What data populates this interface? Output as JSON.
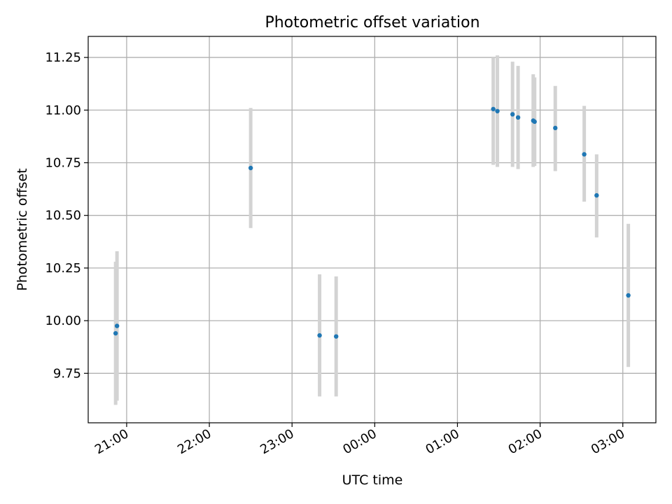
{
  "chart_data": {
    "type": "scatter",
    "title": "Photometric offset variation",
    "xlabel": "UTC time",
    "ylabel": "Photometric offset",
    "x_ticks": [
      "21:00",
      "22:00",
      "23:00",
      "00:00",
      "01:00",
      "02:00",
      "03:00"
    ],
    "x_tick_hours": [
      21,
      22,
      23,
      24,
      25,
      26,
      27
    ],
    "x_unit": "hours UTC",
    "xlim": [
      20.535,
      27.4
    ],
    "y_ticks": [
      "9.75",
      "10.00",
      "10.25",
      "10.50",
      "10.75",
      "11.00",
      "11.25"
    ],
    "y_tick_values": [
      9.75,
      10.0,
      10.25,
      10.5,
      10.75,
      11.0,
      11.25
    ],
    "ylim": [
      9.515,
      11.35
    ],
    "grid": true,
    "colors": {
      "point": "#1f77b4",
      "errorbar": "#d3d3d3",
      "grid": "#b0b0b0"
    },
    "points": [
      {
        "time": "20:52",
        "y": 9.94,
        "err_low": 9.6,
        "err_high": 10.28
      },
      {
        "time": "20:53",
        "y": 9.975,
        "err_low": 9.62,
        "err_high": 10.33
      },
      {
        "time": "22:30",
        "y": 10.725,
        "err_low": 10.44,
        "err_high": 11.01
      },
      {
        "time": "23:20",
        "y": 9.93,
        "err_low": 9.64,
        "err_high": 10.22
      },
      {
        "time": "23:32",
        "y": 9.925,
        "err_low": 9.64,
        "err_high": 10.21
      },
      {
        "time": "01:26",
        "y": 11.005,
        "err_low": 10.74,
        "err_high": 11.25
      },
      {
        "time": "01:29",
        "y": 10.995,
        "err_low": 10.73,
        "err_high": 11.26
      },
      {
        "time": "01:40",
        "y": 10.98,
        "err_low": 10.73,
        "err_high": 11.23
      },
      {
        "time": "01:44",
        "y": 10.965,
        "err_low": 10.72,
        "err_high": 11.21
      },
      {
        "time": "01:55",
        "y": 10.95,
        "err_low": 10.73,
        "err_high": 11.17
      },
      {
        "time": "01:56",
        "y": 10.945,
        "err_low": 10.735,
        "err_high": 11.155
      },
      {
        "time": "02:11",
        "y": 10.915,
        "err_low": 10.71,
        "err_high": 11.115
      },
      {
        "time": "02:32",
        "y": 10.79,
        "err_low": 10.565,
        "err_high": 11.02
      },
      {
        "time": "02:41",
        "y": 10.595,
        "err_low": 10.395,
        "err_high": 10.79
      },
      {
        "time": "03:04",
        "y": 10.12,
        "err_low": 9.78,
        "err_high": 10.46
      }
    ]
  }
}
